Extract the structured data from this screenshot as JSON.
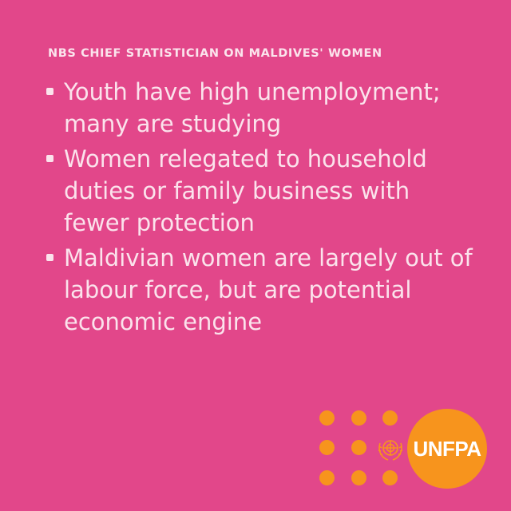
{
  "heading": "NBS CHIEF STATISTICIAN ON MALDIVES' WOMEN",
  "bullets": [
    "Youth have high unemployment; many are studying",
    "Women relegated to household duties or family business with fewer protection",
    "Maldivian women are largely out of labour force, but are potential economic engine"
  ],
  "logo": {
    "text": "UNFPA",
    "emblem_icon": "un-emblem-icon",
    "accent_color": "#f7941d"
  },
  "colors": {
    "background": "#e2478a",
    "text": "#fbe3ec"
  }
}
